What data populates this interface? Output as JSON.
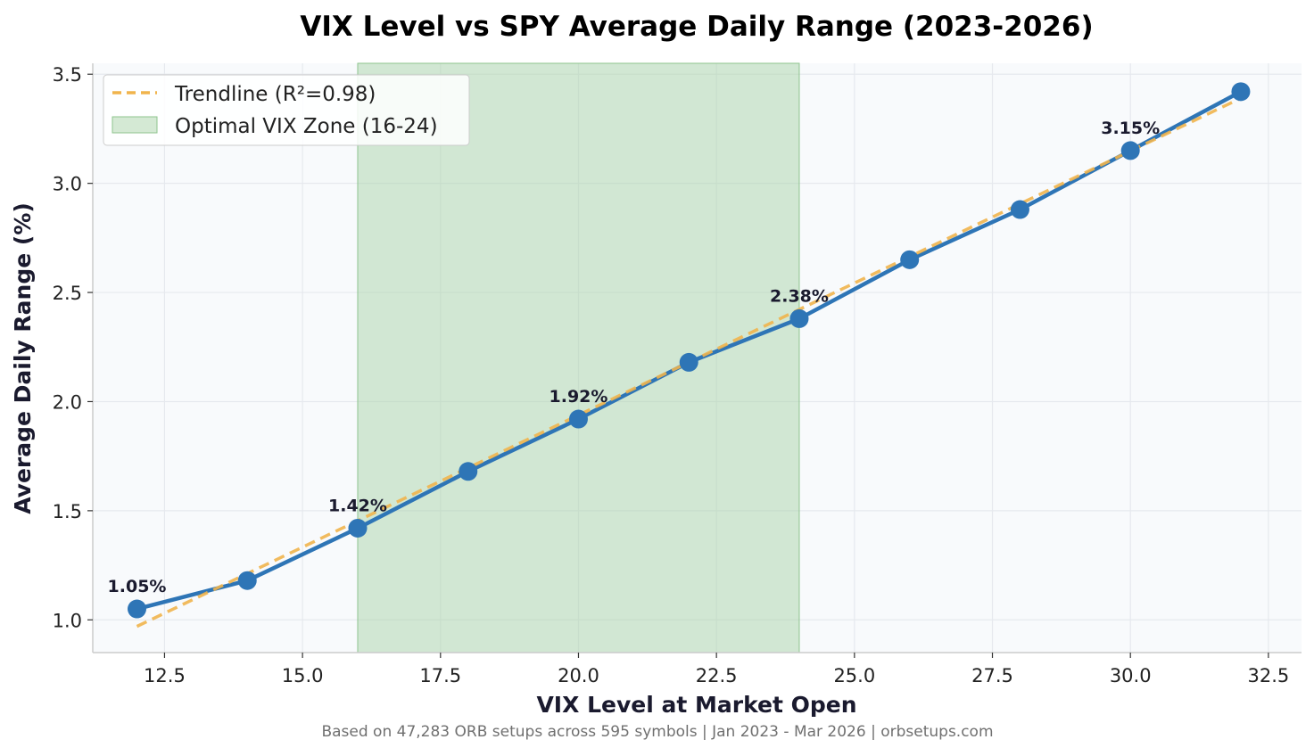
{
  "chart_data": {
    "type": "line",
    "title": "VIX Level vs SPY Average Daily Range (2023-2026)",
    "xlabel": "VIX Level at Market Open",
    "ylabel": "Average Daily Range (%)",
    "caption": "Based on 47,283 ORB setups across 595 symbols | Jan 2023 - Mar 2026 | orbsetups.com",
    "xlim": [
      11.2,
      33.1
    ],
    "ylim": [
      0.85,
      3.55
    ],
    "x_ticks": [
      12.5,
      15.0,
      17.5,
      20.0,
      22.5,
      25.0,
      27.5,
      30.0,
      32.5
    ],
    "x_tick_labels": [
      "12.5",
      "15.0",
      "17.5",
      "20.0",
      "22.5",
      "25.0",
      "27.5",
      "30.0",
      "32.5"
    ],
    "y_ticks": [
      1.0,
      1.5,
      2.0,
      2.5,
      3.0,
      3.5
    ],
    "y_tick_labels": [
      "1.0",
      "1.5",
      "2.0",
      "2.5",
      "3.0",
      "3.5"
    ],
    "grid": true,
    "legend_position": "top-left",
    "series": [
      {
        "name": "",
        "color": "#2e75b6",
        "x": [
          12,
          14,
          16,
          18,
          20,
          22,
          24,
          26,
          28,
          30,
          32
        ],
        "y": [
          1.05,
          1.18,
          1.42,
          1.68,
          1.92,
          2.18,
          2.38,
          2.65,
          2.88,
          3.15,
          3.42
        ]
      }
    ],
    "trendline": {
      "name": "Trendline (R²=0.98)",
      "color": "#f0b44c",
      "x": [
        12,
        32
      ],
      "y": [
        0.97,
        3.39
      ]
    },
    "zone": {
      "name": "Optimal VIX Zone (16-24)",
      "x": [
        16,
        24
      ],
      "color": "#a9d4a9"
    },
    "annotations": [
      {
        "x": 12,
        "y": 1.05,
        "text": "1.05%"
      },
      {
        "x": 16,
        "y": 1.42,
        "text": "1.42%"
      },
      {
        "x": 20,
        "y": 1.92,
        "text": "1.92%"
      },
      {
        "x": 24,
        "y": 2.38,
        "text": "2.38%"
      },
      {
        "x": 30,
        "y": 3.15,
        "text": "3.15%"
      }
    ]
  }
}
